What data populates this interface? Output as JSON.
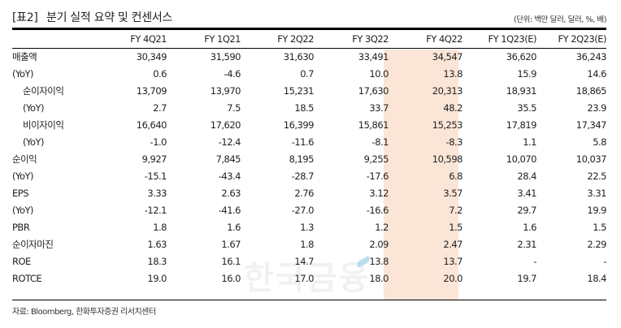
{
  "header": {
    "table_label": "[표2]",
    "title": "분기 실적 요약 및 컨센서스",
    "unit": "(단위: 백만 달러, 달러, %, 배)"
  },
  "highlight": {
    "column_index": 4,
    "color": "#fbe5d6"
  },
  "table": {
    "columns": [
      "FY 4Q21",
      "FY 1Q21",
      "FY 2Q22",
      "FY 3Q22",
      "FY 4Q22",
      "FY 1Q23(E)",
      "FY 2Q23(E)"
    ],
    "rows": [
      {
        "label": "매출액",
        "indent": false,
        "values": [
          "30,349",
          "31,590",
          "31,630",
          "33,491",
          "34,547",
          "36,620",
          "36,243"
        ]
      },
      {
        "label": "(YoY)",
        "indent": false,
        "values": [
          "0.6",
          "-4.6",
          "0.7",
          "10.0",
          "13.8",
          "15.9",
          "14.6"
        ]
      },
      {
        "label": "순이자이익",
        "indent": true,
        "values": [
          "13,709",
          "13,970",
          "15,231",
          "17,630",
          "20,313",
          "18,931",
          "18,865"
        ]
      },
      {
        "label": "(YoY)",
        "indent": true,
        "values": [
          "2.7",
          "7.5",
          "18.5",
          "33.7",
          "48.2",
          "35.5",
          "23.9"
        ]
      },
      {
        "label": "비이자이익",
        "indent": true,
        "values": [
          "16,640",
          "17,620",
          "16,399",
          "15,861",
          "15,253",
          "17,819",
          "17,347"
        ]
      },
      {
        "label": "(YoY)",
        "indent": true,
        "values": [
          "-1.0",
          "-12.4",
          "-11.6",
          "-8.1",
          "-8.3",
          "1.1",
          "5.8"
        ]
      },
      {
        "label": "순이익",
        "indent": false,
        "values": [
          "9,927",
          "7,845",
          "8,195",
          "9,255",
          "10,598",
          "10,070",
          "10,037"
        ]
      },
      {
        "label": "(YoY)",
        "indent": false,
        "values": [
          "-15.1",
          "-43.4",
          "-28.7",
          "-17.6",
          "6.8",
          "28.4",
          "22.5"
        ]
      },
      {
        "label": "EPS",
        "indent": false,
        "values": [
          "3.33",
          "2.63",
          "2.76",
          "3.12",
          "3.57",
          "3.41",
          "3.31"
        ]
      },
      {
        "label": "(YoY)",
        "indent": false,
        "values": [
          "-12.1",
          "-41.6",
          "-27.0",
          "-16.6",
          "7.2",
          "29.7",
          "19.9"
        ]
      },
      {
        "label": "PBR",
        "indent": false,
        "values": [
          "1.8",
          "1.6",
          "1.3",
          "1.2",
          "1.5",
          "1.6",
          "1.5"
        ]
      },
      {
        "label": "순이자마진",
        "indent": false,
        "values": [
          "1.63",
          "1.67",
          "1.8",
          "2.09",
          "2.47",
          "2.31",
          "2.29"
        ]
      },
      {
        "label": "ROE",
        "indent": false,
        "values": [
          "18.3",
          "16.1",
          "14.7",
          "13.8",
          "13.7",
          "-",
          "-"
        ]
      },
      {
        "label": "ROTCE",
        "indent": false,
        "values": [
          "19.0",
          "16.0",
          "17.0",
          "18.0",
          "20.0",
          "19.7",
          "18.4"
        ]
      }
    ]
  },
  "footer": {
    "source": "자료: Bloomberg, 한화투자증권 리서치센터"
  },
  "watermark": {
    "text": "한국금융"
  }
}
